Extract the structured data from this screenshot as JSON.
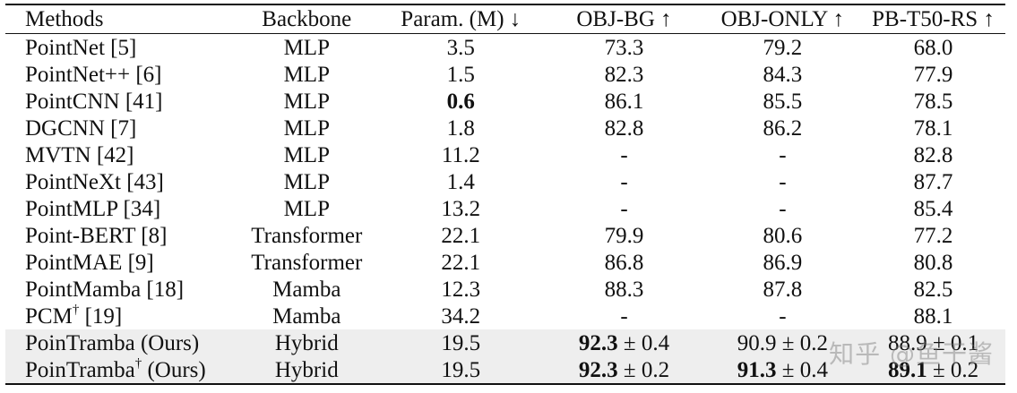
{
  "headers": {
    "methods": "Methods",
    "backbone": "Backbone",
    "param": "Param. (M) ↓",
    "obj_bg": "OBJ-BG ↑",
    "obj_only": "OBJ-ONLY ↑",
    "pb": "PB-T50-RS ↑"
  },
  "rows": [
    {
      "method": "PointNet [5]",
      "backbone": "MLP",
      "param": "3.5",
      "obj_bg": "73.3",
      "obj_only": "79.2",
      "pb": "68.0"
    },
    {
      "method": "PointNet++ [6]",
      "backbone": "MLP",
      "param": "1.5",
      "obj_bg": "82.3",
      "obj_only": "84.3",
      "pb": "77.9"
    },
    {
      "method": "PointCNN [41]",
      "backbone": "MLP",
      "param": "0.6",
      "obj_bg": "86.1",
      "obj_only": "85.5",
      "pb": "78.5"
    },
    {
      "method": "DGCNN [7]",
      "backbone": "MLP",
      "param": "1.8",
      "obj_bg": "82.8",
      "obj_only": "86.2",
      "pb": "78.1"
    },
    {
      "method": "MVTN [42]",
      "backbone": "MLP",
      "param": "11.2",
      "obj_bg": "-",
      "obj_only": "-",
      "pb": "82.8"
    },
    {
      "method": "PointNeXt [43]",
      "backbone": "MLP",
      "param": "1.4",
      "obj_bg": "-",
      "obj_only": "-",
      "pb": "87.7"
    },
    {
      "method": "PointMLP [34]",
      "backbone": "MLP",
      "param": "13.2",
      "obj_bg": "-",
      "obj_only": "-",
      "pb": "85.4"
    },
    {
      "method": "Point-BERT [8]",
      "backbone": "Transformer",
      "param": "22.1",
      "obj_bg": "79.9",
      "obj_only": "80.6",
      "pb": "77.2"
    },
    {
      "method": "PointMAE [9]",
      "backbone": "Transformer",
      "param": "22.1",
      "obj_bg": "86.8",
      "obj_only": "86.9",
      "pb": "80.8"
    },
    {
      "method": "PointMamba [18]",
      "backbone": "Mamba",
      "param": "12.3",
      "obj_bg": "88.3",
      "obj_only": "87.8",
      "pb": "82.5"
    },
    {
      "method_name": "PCM",
      "method_sup": "†",
      "method_ref": " [19]",
      "backbone": "Mamba",
      "param": "34.2",
      "obj_bg": "-",
      "obj_only": "-",
      "pb": "88.1"
    },
    {
      "method": "PoinTramba (Ours)",
      "backbone": "Hybrid",
      "param": "19.5",
      "obj_bg_main": "92.3",
      "obj_bg_pm": " ± 0.4",
      "obj_only_main": "90.9",
      "obj_only_pm": " ± 0.2",
      "pb_main": "88.9",
      "pb_pm": " ± 0.1"
    },
    {
      "method_name": "PoinTramba",
      "method_sup": "†",
      "method_ref": " (Ours)",
      "backbone": "Hybrid",
      "param": "19.5",
      "obj_bg_main": "92.3",
      "obj_bg_pm": " ± 0.2",
      "obj_only_main": "91.3",
      "obj_only_pm": " ± 0.4",
      "pb_main": "89.1",
      "pb_pm": " ± 0.2"
    }
  ],
  "watermark": "知乎 @鱼干酱"
}
